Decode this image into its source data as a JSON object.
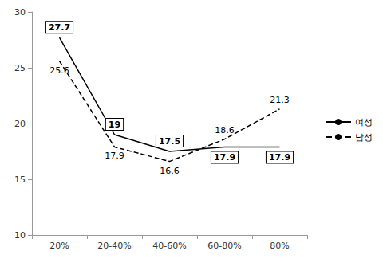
{
  "chart_data": {
    "type": "line",
    "categories": [
      "20%",
      "20-40%",
      "40-60%",
      "60-80%",
      "80%"
    ],
    "series": [
      {
        "name": "여성",
        "color": "#000000",
        "line_style": "solid",
        "marker": "none",
        "values": [
          27.7,
          19,
          17.5,
          17.9,
          17.9
        ]
      },
      {
        "name": "남성",
        "color": "#000000",
        "line_style": "dashed",
        "marker": "none",
        "values": [
          25.6,
          17.9,
          16.6,
          18.6,
          21.3
        ]
      }
    ],
    "ylim": [
      10,
      30
    ],
    "yticks": [
      10,
      15,
      20,
      25,
      30
    ],
    "grid": false,
    "legend": "right",
    "data_labels": true
  }
}
